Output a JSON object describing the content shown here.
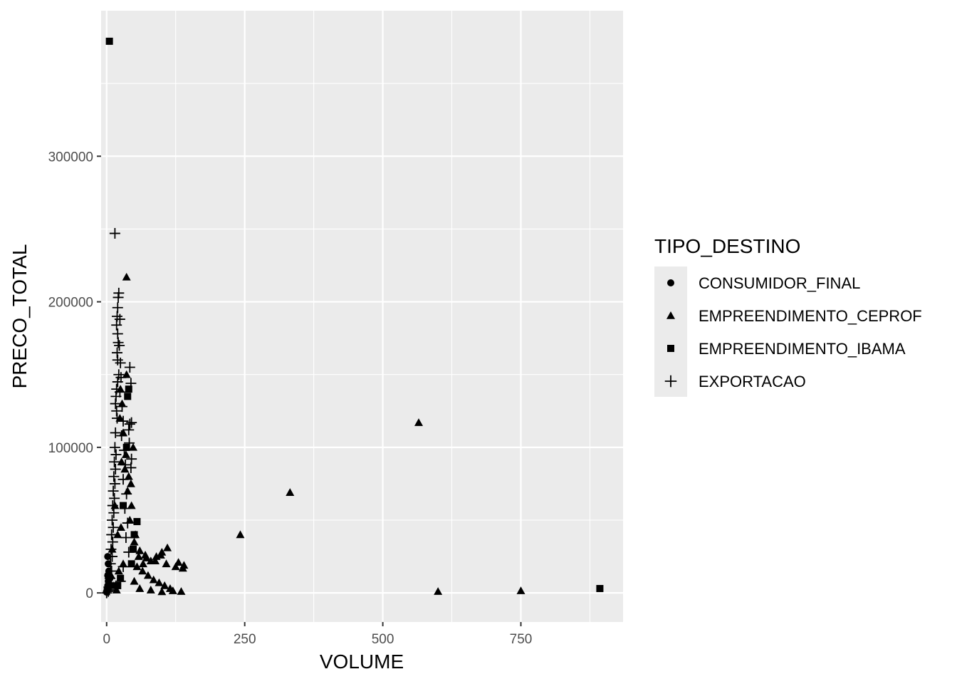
{
  "chart_data": {
    "type": "scatter",
    "xlabel": "VOLUME",
    "ylabel": "PRECO_TOTAL",
    "xlim": [
      -10,
      935
    ],
    "ylim": [
      -20000,
      400000
    ],
    "x_ticks": [
      0,
      250,
      500,
      750
    ],
    "x_tick_labels": [
      "0",
      "250",
      "500",
      "750"
    ],
    "y_ticks": [
      0,
      100000,
      200000,
      300000
    ],
    "y_tick_labels": [
      "0",
      "100000",
      "200000",
      "300000"
    ],
    "grid": true,
    "background": "#ebebeb",
    "legend": {
      "title": "TIPO_DESTINO",
      "placement": "right",
      "entries": [
        {
          "label": "CONSUMIDOR_FINAL",
          "shape": "circle"
        },
        {
          "label": "EMPREENDIMENTO_CEPROF",
          "shape": "triangle"
        },
        {
          "label": "EMPREENDIMENTO_IBAMA",
          "shape": "square"
        },
        {
          "label": "EXPORTACAO",
          "shape": "plus"
        }
      ]
    },
    "series": [
      {
        "name": "CONSUMIDOR_FINAL",
        "shape": "circle",
        "points": [
          [
            0,
            1000
          ],
          [
            1,
            3000
          ],
          [
            2,
            5000
          ],
          [
            3,
            8000
          ],
          [
            2,
            12000
          ],
          [
            4,
            15000
          ],
          [
            1,
            2000
          ],
          [
            5,
            6000
          ],
          [
            3,
            20000
          ],
          [
            6,
            10000
          ],
          [
            0,
            500
          ],
          [
            2,
            25000
          ]
        ]
      },
      {
        "name": "EMPREENDIMENTO_CEPROF",
        "shape": "triangle",
        "points": [
          [
            36,
            217000
          ],
          [
            565,
            117000
          ],
          [
            332,
            69000
          ],
          [
            242,
            40000
          ],
          [
            600,
            1000
          ],
          [
            750,
            1500
          ],
          [
            140,
            19000
          ],
          [
            130,
            21000
          ],
          [
            110,
            31000
          ],
          [
            100,
            28000
          ],
          [
            90,
            25000
          ],
          [
            80,
            22000
          ],
          [
            70,
            26000
          ],
          [
            60,
            29000
          ],
          [
            50,
            35000
          ],
          [
            45,
            60000
          ],
          [
            40,
            80000
          ],
          [
            35,
            95000
          ],
          [
            30,
            110000
          ],
          [
            28,
            130000
          ],
          [
            25,
            140000
          ],
          [
            38,
            70000
          ],
          [
            42,
            50000
          ],
          [
            55,
            18000
          ],
          [
            65,
            15000
          ],
          [
            75,
            12000
          ],
          [
            85,
            9000
          ],
          [
            95,
            7000
          ],
          [
            105,
            5000
          ],
          [
            115,
            3000
          ],
          [
            135,
            1000
          ],
          [
            120,
            1500
          ],
          [
            100,
            800
          ],
          [
            80,
            2000
          ],
          [
            60,
            3000
          ],
          [
            50,
            8000
          ],
          [
            30,
            20000
          ],
          [
            20,
            40000
          ],
          [
            15,
            60000
          ],
          [
            10,
            30000
          ],
          [
            8,
            12000
          ],
          [
            12,
            5000
          ],
          [
            18,
            2000
          ],
          [
            22,
            15000
          ],
          [
            26,
            45000
          ],
          [
            33,
            85000
          ],
          [
            48,
            100000
          ],
          [
            36,
            150000
          ],
          [
            24,
            120000
          ],
          [
            27,
            90000
          ],
          [
            44,
            75000
          ],
          [
            52,
            40000
          ],
          [
            58,
            25000
          ],
          [
            66,
            20000
          ],
          [
            72,
            24000
          ],
          [
            88,
            22000
          ],
          [
            98,
            26000
          ],
          [
            108,
            20000
          ],
          [
            125,
            18000
          ],
          [
            138,
            17000
          ]
        ]
      },
      {
        "name": "EMPREENDIMENTO_IBAMA",
        "shape": "square",
        "points": [
          [
            5,
            379000
          ],
          [
            893,
            3000
          ],
          [
            55,
            49000
          ],
          [
            50,
            40000
          ],
          [
            48,
            30000
          ],
          [
            45,
            20000
          ],
          [
            40,
            140000
          ],
          [
            38,
            135000
          ],
          [
            36,
            100000
          ],
          [
            30,
            60000
          ],
          [
            25,
            10000
          ],
          [
            20,
            5000
          ]
        ]
      },
      {
        "name": "EXPORTACAO",
        "shape": "plus",
        "points": [
          [
            15,
            247000
          ],
          [
            22,
            206000
          ],
          [
            21,
            203000
          ],
          [
            20,
            196000
          ],
          [
            19,
            190000
          ],
          [
            18,
            184000
          ],
          [
            20,
            178000
          ],
          [
            21,
            172000
          ],
          [
            19,
            165000
          ],
          [
            20,
            160000
          ],
          [
            42,
            155000
          ],
          [
            44,
            144000
          ],
          [
            22,
            150000
          ],
          [
            20,
            145000
          ],
          [
            18,
            140000
          ],
          [
            45,
            117000
          ],
          [
            42,
            116000
          ],
          [
            40,
            112000
          ],
          [
            41,
            103000
          ],
          [
            45,
            92000
          ],
          [
            44,
            86000
          ],
          [
            17,
            135000
          ],
          [
            16,
            130000
          ],
          [
            18,
            125000
          ],
          [
            19,
            120000
          ],
          [
            16,
            110000
          ],
          [
            15,
            100000
          ],
          [
            17,
            95000
          ],
          [
            14,
            90000
          ],
          [
            16,
            85000
          ],
          [
            13,
            80000
          ],
          [
            15,
            75000
          ],
          [
            12,
            70000
          ],
          [
            14,
            65000
          ],
          [
            11,
            60000
          ],
          [
            13,
            55000
          ],
          [
            10,
            50000
          ],
          [
            12,
            45000
          ],
          [
            9,
            40000
          ],
          [
            11,
            35000
          ],
          [
            8,
            30000
          ],
          [
            10,
            25000
          ],
          [
            7,
            20000
          ],
          [
            9,
            15000
          ],
          [
            6,
            10000
          ],
          [
            8,
            5000
          ],
          [
            5,
            2000
          ],
          [
            24,
            188000
          ],
          [
            23,
            170000
          ],
          [
            25,
            158000
          ],
          [
            26,
            148000
          ],
          [
            24,
            138000
          ],
          [
            28,
            128000
          ],
          [
            30,
            118000
          ],
          [
            27,
            108000
          ],
          [
            32,
            98000
          ],
          [
            34,
            88000
          ],
          [
            30,
            78000
          ],
          [
            36,
            68000
          ],
          [
            33,
            58000
          ],
          [
            38,
            48000
          ],
          [
            35,
            38000
          ],
          [
            40,
            28000
          ],
          [
            30,
            18000
          ],
          [
            25,
            8000
          ],
          [
            0,
            0
          ],
          [
            3,
            1000
          ],
          [
            4,
            4000
          ]
        ]
      }
    ]
  }
}
